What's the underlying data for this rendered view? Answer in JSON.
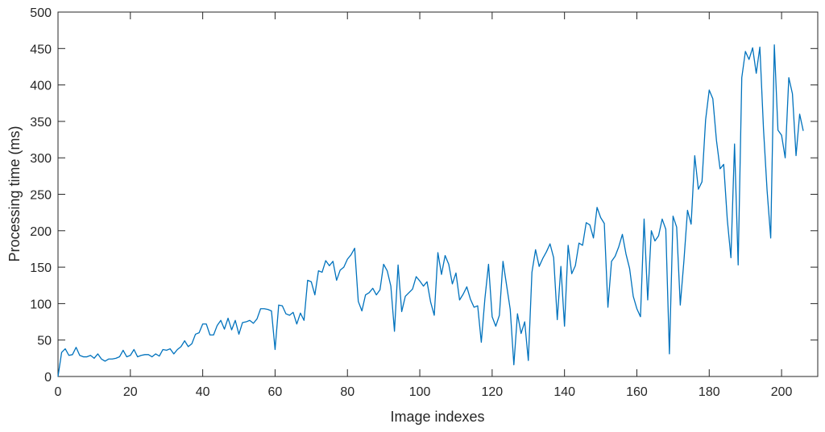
{
  "chart_data": {
    "type": "line",
    "x_label": "Image indexes",
    "y_label": "Processing time (ms)",
    "x": [
      0,
      1,
      2,
      3,
      4,
      5,
      6,
      7,
      8,
      9,
      10,
      11,
      12,
      13,
      14,
      15,
      16,
      17,
      18,
      19,
      20,
      21,
      22,
      23,
      24,
      25,
      26,
      27,
      28,
      29,
      30,
      31,
      32,
      33,
      34,
      35,
      36,
      37,
      38,
      39,
      40,
      41,
      42,
      43,
      44,
      45,
      46,
      47,
      48,
      49,
      50,
      51,
      52,
      53,
      54,
      55,
      56,
      57,
      58,
      59,
      60,
      61,
      62,
      63,
      64,
      65,
      66,
      67,
      68,
      69,
      70,
      71,
      72,
      73,
      74,
      75,
      76,
      77,
      78,
      79,
      80,
      81,
      82,
      83,
      84,
      85,
      86,
      87,
      88,
      89,
      90,
      91,
      92,
      93,
      94,
      95,
      96,
      97,
      98,
      99,
      100,
      101,
      102,
      103,
      104,
      105,
      106,
      107,
      108,
      109,
      110,
      111,
      112,
      113,
      114,
      115,
      116,
      117,
      118,
      119,
      120,
      121,
      122,
      123,
      124,
      125,
      126,
      127,
      128,
      129,
      130,
      131,
      132,
      133,
      134,
      135,
      136,
      137,
      138,
      139,
      140,
      141,
      142,
      143,
      144,
      145,
      146,
      147,
      148,
      149,
      150,
      151,
      152,
      153,
      154,
      155,
      156,
      157,
      158,
      159,
      160,
      161,
      162,
      163,
      164,
      165,
      166,
      167,
      168,
      169,
      170,
      171,
      172,
      173,
      174,
      175,
      176,
      177,
      178,
      179,
      180,
      181,
      182,
      183,
      184,
      185,
      186,
      187,
      188,
      189,
      190,
      191,
      192,
      193,
      194,
      195,
      196,
      197,
      198,
      199,
      200,
      201,
      202,
      203,
      204,
      205,
      206
    ],
    "values": [
      0,
      33,
      38,
      29,
      30,
      40,
      29,
      27,
      27,
      29,
      25,
      31,
      24,
      21,
      24,
      24,
      25,
      27,
      36,
      27,
      29,
      37,
      27,
      29,
      30,
      30,
      27,
      31,
      28,
      37,
      36,
      38,
      31,
      37,
      41,
      49,
      41,
      45,
      58,
      60,
      72,
      72,
      57,
      57,
      70,
      77,
      65,
      80,
      64,
      77,
      58,
      74,
      75,
      77,
      73,
      79,
      93,
      93,
      92,
      90,
      37,
      98,
      97,
      86,
      84,
      88,
      72,
      87,
      77,
      132,
      130,
      112,
      145,
      143,
      159,
      152,
      158,
      132,
      146,
      150,
      161,
      167,
      176,
      103,
      90,
      112,
      115,
      121,
      112,
      119,
      154,
      145,
      124,
      62,
      153,
      89,
      110,
      115,
      120,
      137,
      131,
      124,
      130,
      102,
      84,
      170,
      140,
      166,
      154,
      127,
      142,
      105,
      113,
      123,
      106,
      95,
      97,
      47,
      107,
      154,
      82,
      69,
      84,
      158,
      125,
      92,
      16,
      86,
      59,
      75,
      22,
      143,
      174,
      151,
      162,
      171,
      182,
      163,
      78,
      151,
      69,
      180,
      141,
      152,
      183,
      180,
      211,
      208,
      190,
      232,
      218,
      210,
      95,
      158,
      165,
      178,
      195,
      168,
      148,
      110,
      93,
      82,
      216,
      105,
      200,
      186,
      193,
      216,
      202,
      31,
      220,
      205,
      98,
      158,
      228,
      209,
      303,
      257,
      267,
      352,
      393,
      381,
      324,
      285,
      291,
      215,
      163,
      319,
      153,
      410,
      446,
      435,
      451,
      416,
      452,
      340,
      255,
      190,
      455,
      338,
      331,
      300,
      410,
      388,
      303,
      360,
      337
    ],
    "color": "#0072BD",
    "xlim": [
      0,
      210
    ],
    "xticks": [
      0,
      20,
      40,
      60,
      80,
      100,
      120,
      140,
      160,
      180,
      200
    ],
    "ylim": [
      0,
      500
    ],
    "yticks": [
      0,
      50,
      100,
      150,
      200,
      250,
      300,
      350,
      400,
      450,
      500
    ]
  }
}
